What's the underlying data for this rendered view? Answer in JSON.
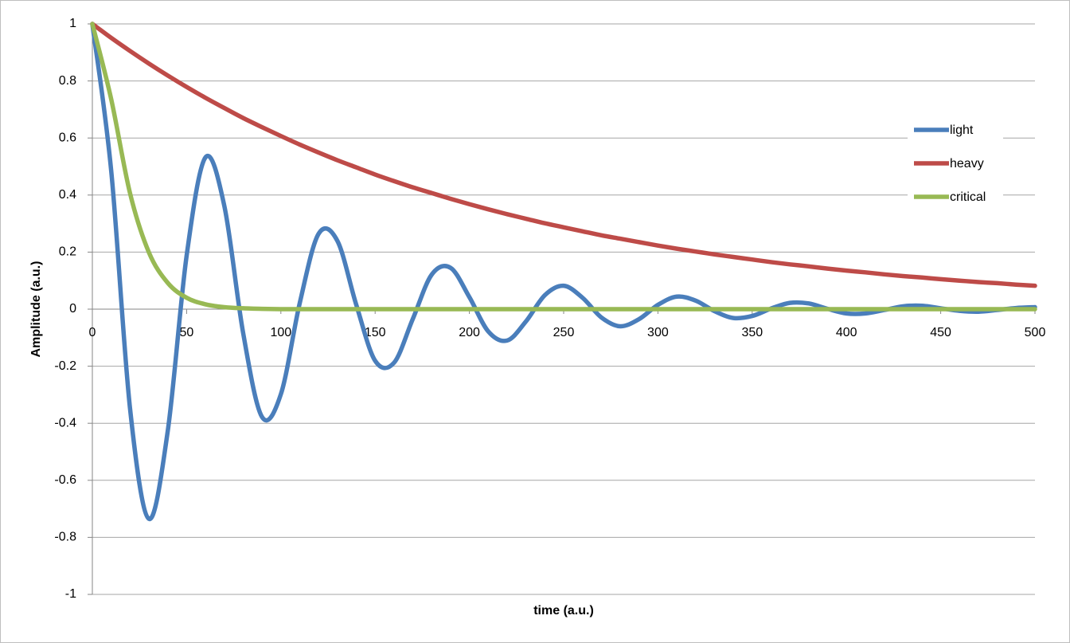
{
  "chart_data": {
    "type": "line",
    "x_label": "time (a.u.)",
    "y_label": "Amplitude (a.u.)",
    "x": [
      0,
      10,
      20,
      30,
      40,
      50,
      60,
      70,
      80,
      90,
      100,
      110,
      120,
      130,
      140,
      150,
      160,
      170,
      180,
      190,
      200,
      210,
      220,
      230,
      240,
      250,
      260,
      270,
      280,
      290,
      300,
      310,
      320,
      330,
      340,
      350,
      360,
      370,
      380,
      390,
      400,
      410,
      420,
      430,
      440,
      450,
      460,
      470,
      480,
      490,
      500
    ],
    "series": [
      {
        "name": "light",
        "color": "#4a7ebb",
        "values": [
          1,
          0.485,
          -0.349,
          -0.735,
          -0.427,
          0.187,
          0.532,
          0.362,
          -0.084,
          -0.378,
          -0.298,
          0.021,
          0.264,
          0.239,
          0.015,
          -0.181,
          -0.188,
          -0.034,
          0.121,
          0.145,
          0.042,
          -0.078,
          -0.11,
          -0.043,
          0.049,
          0.082,
          0.04,
          -0.029,
          -0.06,
          -0.035,
          0.015,
          0.044,
          0.03,
          -0.007,
          -0.031,
          -0.024,
          0.002,
          0.022,
          0.02,
          0.001,
          -0.015,
          -0.015,
          -0.003,
          0.01,
          0.012,
          0.003,
          -0.006,
          -0.009,
          -0.003,
          0.004,
          0.007
        ]
      },
      {
        "name": "heavy",
        "color": "#be4b48",
        "values": [
          1,
          0.951,
          0.905,
          0.861,
          0.819,
          0.779,
          0.741,
          0.705,
          0.67,
          0.638,
          0.607,
          0.577,
          0.549,
          0.522,
          0.497,
          0.472,
          0.449,
          0.427,
          0.407,
          0.387,
          0.368,
          0.35,
          0.333,
          0.317,
          0.301,
          0.287,
          0.273,
          0.259,
          0.247,
          0.235,
          0.223,
          0.212,
          0.202,
          0.192,
          0.183,
          0.174,
          0.165,
          0.157,
          0.15,
          0.142,
          0.135,
          0.129,
          0.122,
          0.116,
          0.111,
          0.105,
          0.1,
          0.095,
          0.091,
          0.086,
          0.082
        ]
      },
      {
        "name": "critical",
        "color": "#98b954",
        "values": [
          1,
          0.736,
          0.406,
          0.199,
          0.092,
          0.04,
          0.017,
          0.007,
          0.003,
          0.001,
          0,
          0,
          0,
          0,
          0,
          0,
          0,
          0,
          0,
          0,
          0,
          0,
          0,
          0,
          0,
          0,
          0,
          0,
          0,
          0,
          0,
          0,
          0,
          0,
          0,
          0,
          0,
          0,
          0,
          0,
          0,
          0,
          0,
          0,
          0,
          0,
          0,
          0,
          0,
          0,
          0
        ]
      }
    ],
    "xlim": [
      0,
      500
    ],
    "xticks": [
      0,
      50,
      100,
      150,
      200,
      250,
      300,
      350,
      400,
      450,
      500
    ],
    "ylim": [
      -1,
      1
    ],
    "yticks": [
      -1,
      -0.8,
      -0.6,
      -0.4,
      -0.2,
      0,
      0.2,
      0.4,
      0.6,
      0.8,
      1
    ],
    "grid": true,
    "legend": "right"
  }
}
